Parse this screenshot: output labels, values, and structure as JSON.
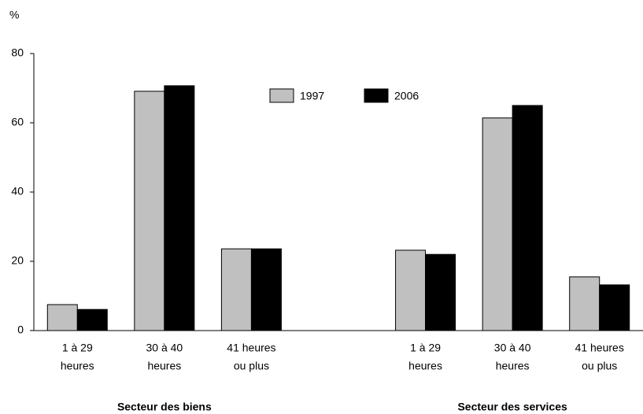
{
  "chart_data": {
    "type": "bar",
    "y_label": "%",
    "categories": [
      [
        "1 à 29",
        "heures"
      ],
      [
        "30 à 40",
        "heures"
      ],
      [
        "41 heures",
        "ou plus"
      ],
      null,
      [
        "1 à 29",
        "heures"
      ],
      [
        "30 à 40",
        "heures"
      ],
      [
        "41 heures",
        "ou plus"
      ]
    ],
    "group_labels": [
      "Secteur des biens",
      "Secteur des services"
    ],
    "series": [
      {
        "name": "1997",
        "color": "#c0c0c0",
        "values": [
          7.5,
          69.1,
          23.6,
          null,
          23.2,
          61.4,
          15.5
        ]
      },
      {
        "name": "2006",
        "color": "#000000",
        "values": [
          6.1,
          70.7,
          23.6,
          null,
          22.0,
          65.0,
          13.2
        ]
      }
    ],
    "ylim": [
      0,
      80
    ],
    "yticks": [
      0,
      20,
      40,
      60,
      80
    ],
    "grid": false,
    "legend": "top"
  }
}
